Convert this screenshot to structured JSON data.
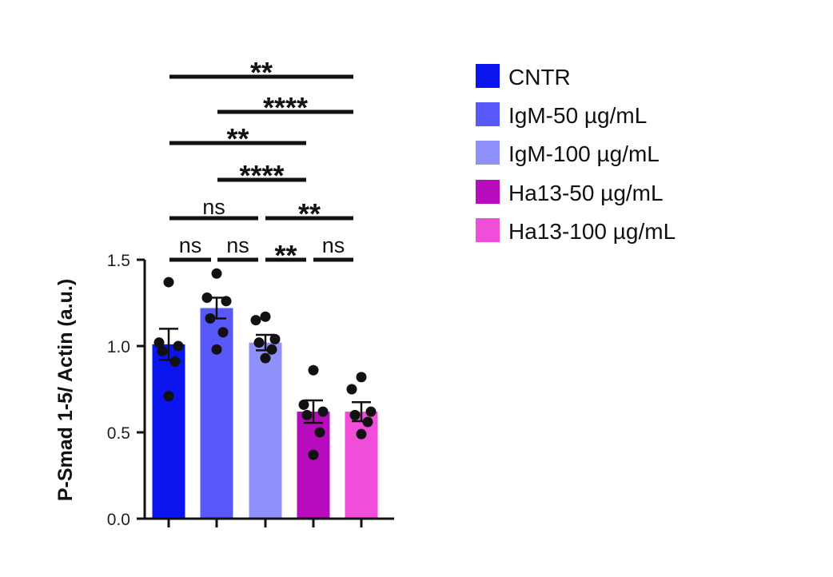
{
  "chart_data": {
    "type": "bar",
    "title": "",
    "xlabel": "",
    "ylabel": "P-Smad 1-5/ Actin (a.u.)",
    "ylim": [
      0,
      1.5
    ],
    "yticks": [
      "0.0",
      "0.5",
      "1.0",
      "1.5"
    ],
    "ytick_values": [
      0,
      0.5,
      1.0,
      1.5
    ],
    "grid": false,
    "legend_position": "right",
    "categories": [
      "CNTR",
      "IgM-50 µg/mL",
      "IgM-100 µg/mL",
      "Ha13-50 µg/mL",
      "Ha13-100 µg/mL"
    ],
    "values": [
      1.01,
      1.22,
      1.02,
      0.62,
      0.62
    ],
    "errors": [
      0.09,
      0.06,
      0.045,
      0.065,
      0.055
    ],
    "colors": [
      "#0a14ee",
      "#5858f8",
      "#9090fa",
      "#b60cbe",
      "#f04ed8"
    ],
    "points": [
      [
        1.37,
        1.02,
        1.0,
        0.97,
        0.91,
        0.71
      ],
      [
        1.42,
        1.28,
        1.26,
        1.16,
        1.08,
        0.98
      ],
      [
        1.17,
        1.15,
        1.04,
        1.02,
        0.98,
        0.93
      ],
      [
        0.86,
        0.66,
        0.62,
        0.6,
        0.5,
        0.37
      ],
      [
        0.82,
        0.75,
        0.62,
        0.6,
        0.56,
        0.49
      ]
    ],
    "significance": [
      {
        "from": 0,
        "to": 4,
        "label": "**"
      },
      {
        "from": 1,
        "to": 4,
        "label": "****"
      },
      {
        "from": 0,
        "to": 3,
        "label": "**"
      },
      {
        "from": 1,
        "to": 3,
        "label": "****"
      },
      {
        "from": 0,
        "to": 2,
        "label": "ns"
      },
      {
        "from": 2,
        "to": 4,
        "label": "**"
      },
      {
        "from": 0,
        "to": 1,
        "label": "ns"
      },
      {
        "from": 1,
        "to": 2,
        "label": "ns"
      },
      {
        "from": 2,
        "to": 3,
        "label": "**"
      },
      {
        "from": 3,
        "to": 4,
        "label": "ns"
      }
    ]
  }
}
